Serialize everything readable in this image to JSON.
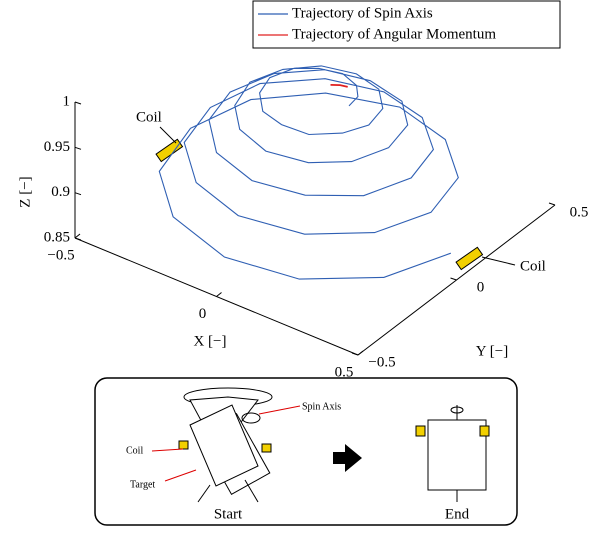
{
  "chart_data": {
    "type": "line3d",
    "xlabel": "X [−]",
    "ylabel": "Y [−]",
    "zlabel": "Z [−]",
    "xlim": [
      -0.5,
      0.5
    ],
    "ylim": [
      -0.5,
      0.5
    ],
    "zlim": [
      0.85,
      1
    ],
    "xticks": [
      {
        "value": -0.5,
        "label": "−0.5"
      },
      0,
      0.5
    ],
    "yticks": [
      {
        "value": -0.5,
        "label": "−0.5"
      },
      0,
      0.5
    ],
    "zticks": [
      0.85,
      0.9,
      0.95,
      1
    ],
    "annotations": [
      "Coil",
      "Coil"
    ],
    "series": [
      {
        "name": "Trajectory of Spin Axis",
        "color": "#2f5fb3",
        "x": [
          0.12,
          0.11,
          0.07,
          0,
          -0.07,
          -0.13,
          -0.16,
          -0.14,
          -0.08,
          0,
          0.09,
          0.16,
          0.19,
          0.17,
          0.1,
          0,
          -0.11,
          -0.19,
          -0.23,
          -0.2,
          -0.12,
          0,
          0.13,
          0.22,
          0.26,
          0.23,
          0.14,
          0,
          -0.14,
          -0.25,
          -0.3,
          -0.27,
          -0.16,
          0,
          0.16,
          0.29,
          0.34,
          0.3,
          0.17,
          0,
          -0.18,
          -0.32,
          -0.37,
          -0.33,
          -0.19,
          0,
          0.2,
          0.35,
          0.41,
          0.36,
          0.21,
          0,
          -0.22,
          -0.38,
          -0.44,
          -0.39,
          -0.23,
          0,
          0.23,
          0.41,
          0.48
        ],
        "y": [
          0,
          0.06,
          0.11,
          0.14,
          0.12,
          0.08,
          0,
          -0.08,
          -0.15,
          -0.17,
          -0.16,
          -0.09,
          0,
          0.1,
          0.18,
          0.21,
          0.19,
          0.11,
          0,
          -0.12,
          -0.21,
          -0.25,
          -0.22,
          -0.13,
          0,
          0.14,
          0.24,
          0.28,
          0.25,
          0.15,
          0,
          -0.15,
          -0.27,
          -0.32,
          -0.28,
          -0.17,
          0,
          0.17,
          0.3,
          0.35,
          0.31,
          0.18,
          0,
          -0.19,
          -0.33,
          -0.39,
          -0.34,
          -0.2,
          0,
          0.21,
          0.36,
          0.43,
          0.37,
          0.22,
          0,
          -0.23,
          -0.39,
          -0.46,
          -0.41,
          -0.24,
          0
        ],
        "z": [
          0.993,
          0.992,
          0.991,
          0.99,
          0.99,
          0.989,
          0.988,
          0.987,
          0.986,
          0.985,
          0.984,
          0.983,
          0.981,
          0.98,
          0.979,
          0.978,
          0.976,
          0.975,
          0.974,
          0.972,
          0.971,
          0.969,
          0.968,
          0.966,
          0.965,
          0.963,
          0.961,
          0.959,
          0.958,
          0.956,
          0.954,
          0.952,
          0.95,
          0.948,
          0.946,
          0.944,
          0.942,
          0.94,
          0.937,
          0.935,
          0.933,
          0.931,
          0.928,
          0.926,
          0.923,
          0.921,
          0.918,
          0.916,
          0.913,
          0.91,
          0.908,
          0.905,
          0.902,
          0.899,
          0.896,
          0.893,
          0.89,
          0.887,
          0.884,
          0.881,
          0.877
        ]
      },
      {
        "name": "Trajectory of Angular Momentum",
        "color": "#e02020",
        "x": [
          0.02,
          0.04,
          0.06
        ],
        "y": [
          0.05,
          0.07,
          0.08
        ],
        "z": [
          0.995,
          0.994,
          0.993
        ]
      }
    ]
  },
  "inset": {
    "spin_axis": "Spin Axis",
    "coil": "Coil",
    "target": "Target",
    "start": "Start",
    "end": "End"
  }
}
